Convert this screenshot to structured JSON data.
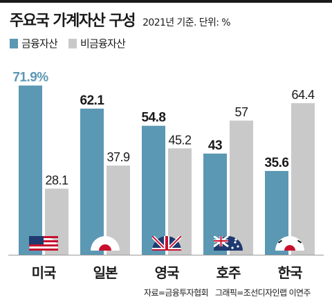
{
  "header": {
    "title": "주요국 가계자산 구성",
    "subtitle": "2021년 기준. 단위: %"
  },
  "footer": {
    "source": "자료=금융투자협회",
    "credit": "그래픽=조선디자인랩 이연주"
  },
  "colors": {
    "financial": "#5b98b4",
    "non_financial": "#c9c9c9",
    "financial_label_first": "#5b98b4",
    "text": "#1a1a1a"
  },
  "chart_data": {
    "type": "bar",
    "categories": [
      "미국",
      "일본",
      "영국",
      "호주",
      "한국"
    ],
    "category_flags": [
      "us-flag-icon",
      "japan-flag-icon",
      "uk-flag-icon",
      "australia-flag-icon",
      "korea-flag-icon"
    ],
    "series": [
      {
        "name": "금융자산",
        "values": [
          71.9,
          62.1,
          54.8,
          43,
          35.6
        ],
        "labels": [
          "71.9%",
          "62.1",
          "54.8",
          "43",
          "35.6"
        ]
      },
      {
        "name": "비금융자산",
        "values": [
          28.1,
          37.9,
          45.2,
          57,
          64.4
        ],
        "labels": [
          "28.1",
          "37.9",
          "45.2",
          "57",
          "64.4"
        ]
      }
    ],
    "ylim": [
      0,
      80
    ],
    "grid": false,
    "legend": "top-left"
  }
}
